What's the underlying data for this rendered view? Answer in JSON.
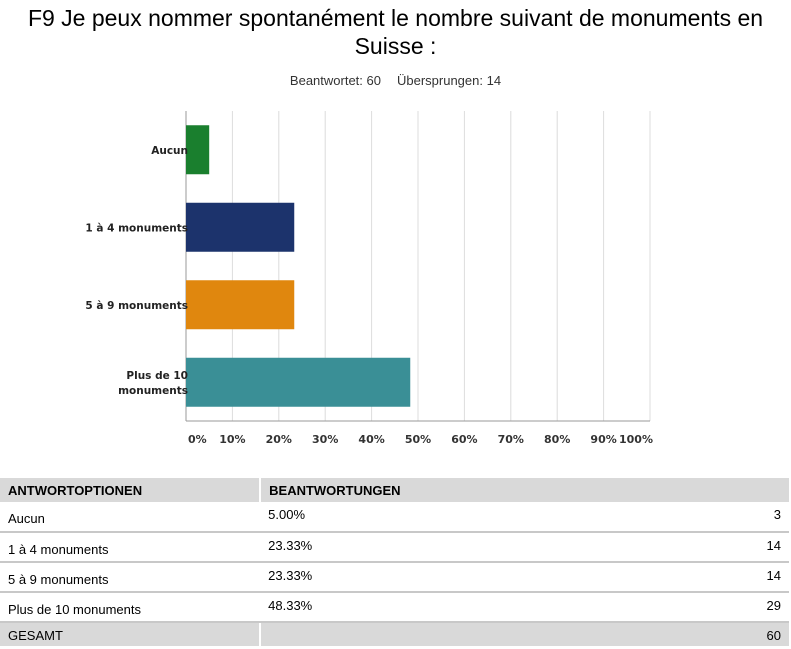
{
  "title": "F9 Je peux nommer spontanément le nombre suivant de monuments en Suisse :",
  "stats": {
    "answered": "Beantwortet: 60",
    "skipped": "Übersprungen: 14"
  },
  "chart_data": {
    "type": "bar",
    "orientation": "horizontal",
    "categories": [
      "Aucun",
      "1 à 4 monuments",
      "5 à 9 monuments",
      "Plus de 10 monuments"
    ],
    "category_lines": [
      [
        "Aucun"
      ],
      [
        "1 à 4 monuments"
      ],
      [
        "5 à 9 monuments"
      ],
      [
        "Plus de 10",
        "monuments"
      ]
    ],
    "values": [
      5.0,
      23.33,
      23.33,
      48.33
    ],
    "colors": [
      "#1a7f2e",
      "#1c336c",
      "#e0870e",
      "#3a8f96"
    ],
    "xlim": [
      0,
      100
    ],
    "ticks": [
      "0%",
      "10%",
      "20%",
      "30%",
      "40%",
      "50%",
      "60%",
      "70%",
      "80%",
      "90%",
      "100%"
    ],
    "grid": true
  },
  "table": {
    "headers": [
      "ANTWORTOPTIONEN",
      "BEANTWORTUNGEN"
    ],
    "rows": [
      {
        "label": "Aucun",
        "pct": "5.00%",
        "count": "3"
      },
      {
        "label": "1 à 4 monuments",
        "pct": "23.33%",
        "count": "14"
      },
      {
        "label": "5 à 9 monuments",
        "pct": "23.33%",
        "count": "14"
      },
      {
        "label": "Plus de 10 monuments",
        "pct": "48.33%",
        "count": "29"
      }
    ],
    "total_label": "GESAMT",
    "total": "60"
  }
}
